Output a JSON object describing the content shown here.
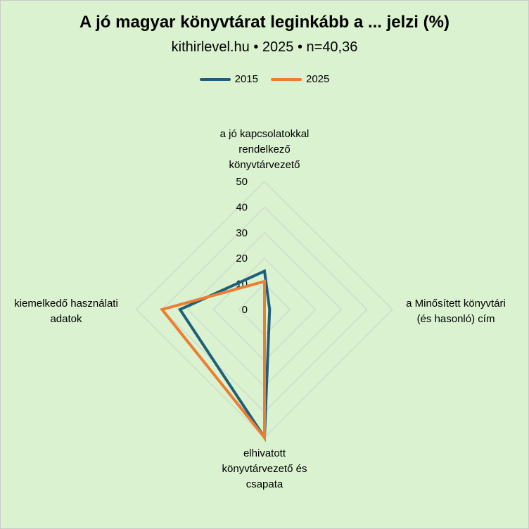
{
  "title": "A jó magyar könyvtárat leginkább a ... jelzi (%)",
  "subtitle": "kithirlevel.hu • 2025 • n=40,36",
  "chart_data": {
    "type": "radar",
    "title": "A jó magyar könyvtárat leginkább a ... jelzi (%)",
    "subtitle": "kithirlevel.hu • 2025 • n=40,36",
    "categories": [
      "a jó kapcsolatokkal rendelkező könyvtárvezető",
      "a Minősített könyvtári (és hasonló) cím",
      "elhivatott könyvtárvezető és csapata",
      "kiemelkedő használati adatok"
    ],
    "category_lines": [
      [
        "a jó kapcsolatokkal",
        "rendelkező",
        "könyvtárvezető"
      ],
      [
        "a Minősített könyvtári",
        "(és hasonló) cím"
      ],
      [
        "elhivatott",
        "könyvtárvezető és",
        "csapata"
      ],
      [
        "kiemelkedő használati",
        "adatok"
      ]
    ],
    "series": [
      {
        "name": "2015",
        "color": "#1f5f7a",
        "values": [
          15,
          2,
          50,
          33
        ]
      },
      {
        "name": "2025",
        "color": "#ed7d31",
        "values": [
          11,
          0,
          50,
          40
        ]
      }
    ],
    "rlim": [
      0,
      50
    ],
    "ticks": [
      0,
      10,
      20,
      30,
      40,
      50
    ],
    "tick_labels": [
      "0",
      "10",
      "20",
      "30",
      "40",
      "50"
    ],
    "grid": true,
    "legend": "top"
  }
}
